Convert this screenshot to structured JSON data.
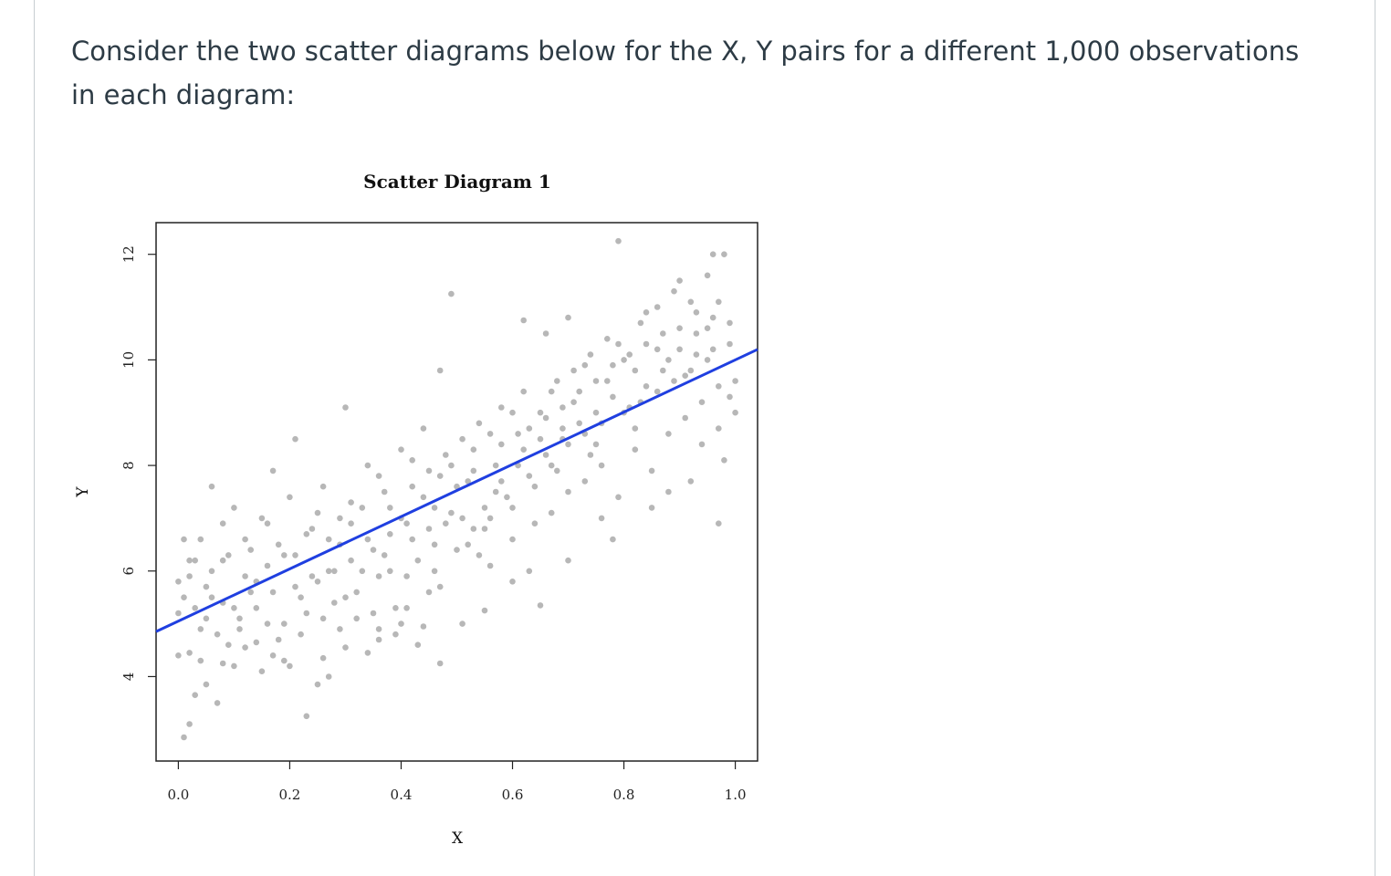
{
  "question": {
    "text": "Consider the two scatter diagrams below for the X, Y pairs for a different 1,000 observations in each diagram:"
  },
  "colors": {
    "point": "#b7b7b7",
    "line": "#1f3fe0",
    "frame": "#222222",
    "text": "#2d3b45"
  },
  "chart_data": {
    "type": "scatter",
    "title": "Scatter Diagram 1",
    "xlabel": "X",
    "ylabel": "Y",
    "xlim": [
      -0.04,
      1.04
    ],
    "ylim": [
      2.4,
      12.6
    ],
    "x_ticks": [
      0.0,
      0.2,
      0.4,
      0.6,
      0.8,
      1.0
    ],
    "x_tick_labels": [
      "0.0",
      "0.2",
      "0.4",
      "0.6",
      "0.8",
      "1.0"
    ],
    "y_ticks": [
      4,
      6,
      8,
      10,
      12
    ],
    "y_tick_labels": [
      "4",
      "6",
      "8",
      "10",
      "12"
    ],
    "n_observations": 1000,
    "regression_line": {
      "intercept": 5.05,
      "slope": 4.95
    },
    "points": [
      [
        0.01,
        2.85
      ],
      [
        0.02,
        3.1
      ],
      [
        0.03,
        3.65
      ],
      [
        0.05,
        3.85
      ],
      [
        0.07,
        3.5
      ],
      [
        0.23,
        3.25
      ],
      [
        0.25,
        3.85
      ],
      [
        0.27,
        4.0
      ],
      [
        0.1,
        4.2
      ],
      [
        0.0,
        4.4
      ],
      [
        0.02,
        4.45
      ],
      [
        0.04,
        4.3
      ],
      [
        0.08,
        4.25
      ],
      [
        0.12,
        4.55
      ],
      [
        0.15,
        4.1
      ],
      [
        0.14,
        4.65
      ],
      [
        0.2,
        4.2
      ],
      [
        0.22,
        4.8
      ],
      [
        0.26,
        4.35
      ],
      [
        0.3,
        4.55
      ],
      [
        0.34,
        4.45
      ],
      [
        0.36,
        4.7
      ],
      [
        0.39,
        4.8
      ],
      [
        0.4,
        5.0
      ],
      [
        0.43,
        4.6
      ],
      [
        0.44,
        4.95
      ],
      [
        0.47,
        4.25
      ],
      [
        0.51,
        5.0
      ],
      [
        0.55,
        5.25
      ],
      [
        0.65,
        5.35
      ],
      [
        0.0,
        5.2
      ],
      [
        0.01,
        5.5
      ],
      [
        0.02,
        5.9
      ],
      [
        0.03,
        6.2
      ],
      [
        0.05,
        5.7
      ],
      [
        0.06,
        6.0
      ],
      [
        0.08,
        5.4
      ],
      [
        0.09,
        6.3
      ],
      [
        0.11,
        5.1
      ],
      [
        0.12,
        5.9
      ],
      [
        0.13,
        6.4
      ],
      [
        0.14,
        5.3
      ],
      [
        0.16,
        6.1
      ],
      [
        0.17,
        5.6
      ],
      [
        0.18,
        6.5
      ],
      [
        0.19,
        5.0
      ],
      [
        0.21,
        6.3
      ],
      [
        0.22,
        5.5
      ],
      [
        0.24,
        6.8
      ],
      [
        0.25,
        5.8
      ],
      [
        0.27,
        6.6
      ],
      [
        0.28,
        5.4
      ],
      [
        0.29,
        7.0
      ],
      [
        0.31,
        6.2
      ],
      [
        0.32,
        5.6
      ],
      [
        0.33,
        7.2
      ],
      [
        0.35,
        6.4
      ],
      [
        0.36,
        5.9
      ],
      [
        0.37,
        7.5
      ],
      [
        0.38,
        6.7
      ],
      [
        0.39,
        5.3
      ],
      [
        0.41,
        6.9
      ],
      [
        0.42,
        7.6
      ],
      [
        0.43,
        6.2
      ],
      [
        0.45,
        7.9
      ],
      [
        0.46,
        6.5
      ],
      [
        0.47,
        5.7
      ],
      [
        0.48,
        8.2
      ],
      [
        0.49,
        7.1
      ],
      [
        0.5,
        6.4
      ],
      [
        0.51,
        8.5
      ],
      [
        0.52,
        7.7
      ],
      [
        0.53,
        6.8
      ],
      [
        0.54,
        8.8
      ],
      [
        0.55,
        7.2
      ],
      [
        0.56,
        6.1
      ],
      [
        0.57,
        8.0
      ],
      [
        0.58,
        9.1
      ],
      [
        0.59,
        7.4
      ],
      [
        0.6,
        6.6
      ],
      [
        0.61,
        8.6
      ],
      [
        0.62,
        9.4
      ],
      [
        0.63,
        7.8
      ],
      [
        0.64,
        6.9
      ],
      [
        0.65,
        9.0
      ],
      [
        0.66,
        8.2
      ],
      [
        0.67,
        7.1
      ],
      [
        0.68,
        9.6
      ],
      [
        0.69,
        8.5
      ],
      [
        0.7,
        7.5
      ],
      [
        0.71,
        9.8
      ],
      [
        0.72,
        8.8
      ],
      [
        0.73,
        7.7
      ],
      [
        0.74,
        10.1
      ],
      [
        0.75,
        9.0
      ],
      [
        0.76,
        8.0
      ],
      [
        0.77,
        10.4
      ],
      [
        0.78,
        9.3
      ],
      [
        0.79,
        7.4
      ],
      [
        0.8,
        10.0
      ],
      [
        0.81,
        9.1
      ],
      [
        0.82,
        8.3
      ],
      [
        0.83,
        10.7
      ],
      [
        0.84,
        9.5
      ],
      [
        0.85,
        7.9
      ],
      [
        0.86,
        11.0
      ],
      [
        0.87,
        9.8
      ],
      [
        0.88,
        8.6
      ],
      [
        0.89,
        11.3
      ],
      [
        0.9,
        10.2
      ],
      [
        0.91,
        8.9
      ],
      [
        0.92,
        11.1
      ],
      [
        0.93,
        10.5
      ],
      [
        0.94,
        9.2
      ],
      [
        0.95,
        11.6
      ],
      [
        0.96,
        10.8
      ],
      [
        0.97,
        9.5
      ],
      [
        0.98,
        12.0
      ],
      [
        0.99,
        10.3
      ],
      [
        1.0,
        9.0
      ],
      [
        0.79,
        12.25
      ],
      [
        0.96,
        12.0
      ],
      [
        0.49,
        11.25
      ],
      [
        0.62,
        10.75
      ],
      [
        0.7,
        10.8
      ],
      [
        0.66,
        10.5
      ],
      [
        0.47,
        9.8
      ],
      [
        0.3,
        9.1
      ],
      [
        0.21,
        8.5
      ],
      [
        0.17,
        7.9
      ],
      [
        0.06,
        7.6
      ],
      [
        0.1,
        7.2
      ],
      [
        0.04,
        6.6
      ],
      [
        0.08,
        6.9
      ],
      [
        0.15,
        7.0
      ],
      [
        0.2,
        7.4
      ],
      [
        0.26,
        7.6
      ],
      [
        0.34,
        8.0
      ],
      [
        0.4,
        8.3
      ],
      [
        0.44,
        8.7
      ],
      [
        0.02,
        6.2
      ],
      [
        0.05,
        5.1
      ],
      [
        0.07,
        4.8
      ],
      [
        0.11,
        4.9
      ],
      [
        0.13,
        5.6
      ],
      [
        0.16,
        5.0
      ],
      [
        0.18,
        4.7
      ],
      [
        0.23,
        5.2
      ],
      [
        0.24,
        5.9
      ],
      [
        0.26,
        5.1
      ],
      [
        0.28,
        6.0
      ],
      [
        0.3,
        5.5
      ],
      [
        0.31,
        6.9
      ],
      [
        0.33,
        6.0
      ],
      [
        0.35,
        5.2
      ],
      [
        0.37,
        6.3
      ],
      [
        0.38,
        7.2
      ],
      [
        0.41,
        5.9
      ],
      [
        0.42,
        6.6
      ],
      [
        0.44,
        7.4
      ],
      [
        0.46,
        6.0
      ],
      [
        0.48,
        6.9
      ],
      [
        0.5,
        7.6
      ],
      [
        0.52,
        6.5
      ],
      [
        0.53,
        7.9
      ],
      [
        0.55,
        6.8
      ],
      [
        0.57,
        7.5
      ],
      [
        0.58,
        8.4
      ],
      [
        0.6,
        7.2
      ],
      [
        0.61,
        8.0
      ],
      [
        0.63,
        8.7
      ],
      [
        0.64,
        7.6
      ],
      [
        0.66,
        8.9
      ],
      [
        0.67,
        8.0
      ],
      [
        0.69,
        9.1
      ],
      [
        0.7,
        8.4
      ],
      [
        0.72,
        9.4
      ],
      [
        0.73,
        8.6
      ],
      [
        0.75,
        9.6
      ],
      [
        0.76,
        8.8
      ],
      [
        0.78,
        9.9
      ],
      [
        0.8,
        9.0
      ],
      [
        0.81,
        10.1
      ],
      [
        0.83,
        9.2
      ],
      [
        0.84,
        10.3
      ],
      [
        0.86,
        9.4
      ],
      [
        0.87,
        10.5
      ],
      [
        0.89,
        9.6
      ],
      [
        0.9,
        10.6
      ],
      [
        0.92,
        9.8
      ],
      [
        0.93,
        10.9
      ],
      [
        0.95,
        10.0
      ],
      [
        0.96,
        10.2
      ],
      [
        0.97,
        8.7
      ],
      [
        0.98,
        8.1
      ],
      [
        0.99,
        9.3
      ],
      [
        0.85,
        7.2
      ],
      [
        0.78,
        6.6
      ],
      [
        0.76,
        7.0
      ],
      [
        0.7,
        6.2
      ],
      [
        0.6,
        5.8
      ],
      [
        0.63,
        6.0
      ],
      [
        0.45,
        5.6
      ],
      [
        0.41,
        5.3
      ],
      [
        0.36,
        4.9
      ],
      [
        0.32,
        5.1
      ],
      [
        0.29,
        4.9
      ],
      [
        0.17,
        4.4
      ],
      [
        0.19,
        4.3
      ],
      [
        0.09,
        4.6
      ],
      [
        0.97,
        6.9
      ],
      [
        0.92,
        7.7
      ],
      [
        0.88,
        7.5
      ],
      [
        0.94,
        8.4
      ],
      [
        0.82,
        8.7
      ],
      [
        0.74,
        8.2
      ],
      [
        0.68,
        7.9
      ],
      [
        0.56,
        7.0
      ],
      [
        0.54,
        6.3
      ],
      [
        0.46,
        7.2
      ],
      [
        0.0,
        5.8
      ],
      [
        0.01,
        6.6
      ],
      [
        0.03,
        5.3
      ],
      [
        0.04,
        4.9
      ],
      [
        0.06,
        5.5
      ],
      [
        0.08,
        6.2
      ],
      [
        0.1,
        5.3
      ],
      [
        0.12,
        6.6
      ],
      [
        0.14,
        5.8
      ],
      [
        0.16,
        6.9
      ],
      [
        0.19,
        6.3
      ],
      [
        0.21,
        5.7
      ],
      [
        0.23,
        6.7
      ],
      [
        0.25,
        7.1
      ],
      [
        0.27,
        6.0
      ],
      [
        0.29,
        6.5
      ],
      [
        0.31,
        7.3
      ],
      [
        0.34,
        6.6
      ],
      [
        0.36,
        7.8
      ],
      [
        0.38,
        6.0
      ],
      [
        0.4,
        7.0
      ],
      [
        0.42,
        8.1
      ],
      [
        0.45,
        6.8
      ],
      [
        0.47,
        7.8
      ],
      [
        0.49,
        8.0
      ],
      [
        0.51,
        7.0
      ],
      [
        0.53,
        8.3
      ],
      [
        0.56,
        8.6
      ],
      [
        0.58,
        7.7
      ],
      [
        0.6,
        9.0
      ],
      [
        0.62,
        8.3
      ],
      [
        0.65,
        8.5
      ],
      [
        0.67,
        9.4
      ],
      [
        0.69,
        8.7
      ],
      [
        0.71,
        9.2
      ],
      [
        0.73,
        9.9
      ],
      [
        0.75,
        8.4
      ],
      [
        0.77,
        9.6
      ],
      [
        0.79,
        10.3
      ],
      [
        0.82,
        9.8
      ],
      [
        0.84,
        10.9
      ],
      [
        0.86,
        10.2
      ],
      [
        0.88,
        10.0
      ],
      [
        0.9,
        11.5
      ],
      [
        0.91,
        9.7
      ],
      [
        0.93,
        10.1
      ],
      [
        0.95,
        10.6
      ],
      [
        0.97,
        11.1
      ],
      [
        0.99,
        10.7
      ],
      [
        1.0,
        9.6
      ]
    ]
  }
}
